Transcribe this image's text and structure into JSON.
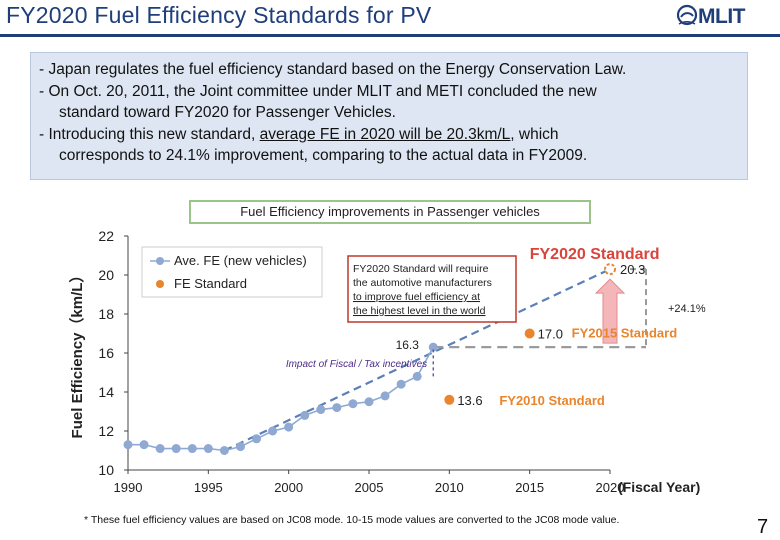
{
  "page": {
    "title": "FY2020 Fuel Efficiency Standards for PV",
    "logo_text": "MLIT",
    "intro_lines": [
      "- Japan regulates the fuel efficiency standard based on the Energy Conservation Law.",
      "- On Oct. 20, 2011, the Joint committee under MLIT and METI concluded the new",
      "standard toward FY2020 for Passenger Vehicles.",
      "- Introducing this new standard, ",
      "average FE in 2020 will be 20.3km/L,",
      " which",
      "corresponds to 24.1% improvement, comparing to the actual data in FY2009."
    ],
    "chart_heading": "Fuel Efficiency improvements in Passenger vehicles",
    "footnote": "* These fuel efficiency values are based on JC08 mode.  10-15 mode values are converted to the JC08 mode value.",
    "page_number": "7"
  },
  "chart_data": {
    "type": "line",
    "ylabel": "Fuel Efficiency（km/L）",
    "xlabel": "(Fiscal Year)",
    "xlim": [
      1990,
      2020
    ],
    "ylim": [
      10,
      22
    ],
    "x_ticks": [
      1990,
      1995,
      2000,
      2005,
      2010,
      2015,
      2020
    ],
    "y_ticks": [
      10,
      12,
      14,
      16,
      18,
      20,
      22
    ],
    "legend": {
      "placement": "top-left",
      "entries": [
        "Ave. FE (new vehicles)",
        "FE Standard"
      ]
    },
    "series": [
      {
        "name": "Ave. FE (new vehicles)",
        "color": "#8fa9d2",
        "x": [
          1990,
          1991,
          1992,
          1993,
          1994,
          1995,
          1996,
          1997,
          1998,
          1999,
          2000,
          2001,
          2002,
          2003,
          2004,
          2005,
          2006,
          2007,
          2008,
          2009
        ],
        "y": [
          11.3,
          11.3,
          11.1,
          11.1,
          11.1,
          11.1,
          11.0,
          11.2,
          11.6,
          12.0,
          12.2,
          12.8,
          13.1,
          13.2,
          13.4,
          13.5,
          13.8,
          14.4,
          14.8,
          16.3
        ]
      },
      {
        "name": "FE Standard",
        "color": "#e8852d",
        "points": [
          {
            "x": 2010,
            "y": 13.6,
            "label": "13.6",
            "name": "FY2010 Standard"
          },
          {
            "x": 2015,
            "y": 17.0,
            "label": "17.0",
            "name": "FY2015 Standard"
          },
          {
            "x": 2020,
            "y": 20.3,
            "label": "20.3",
            "name": "FY2020 Standard"
          }
        ]
      }
    ],
    "trend_line": {
      "x": [
        1996,
        2020
      ],
      "y": [
        11.0,
        20.3
      ],
      "color": "#5b7fb8"
    },
    "reference_line": {
      "x": [
        2009,
        2020
      ],
      "y": [
        16.3,
        16.3
      ],
      "color": "#9a9a9a"
    },
    "annotations": {
      "last_ave_label": "16.3",
      "fiscal_impact": "Impact of Fiscal / Tax incentives",
      "improvement": "+24.1%",
      "callout_lines": [
        "FY2020 Standard will require",
        "the automotive manufacturers",
        "to improve  fuel efficiency at",
        "the highest level in the world"
      ],
      "fy2020_heading": "FY2020 Standard",
      "fy2015_label": "FY2015 Standard",
      "fy2010_label": "FY2010 Standard"
    },
    "colors": {
      "ave": "#8fa9d2",
      "standard": "#e8852d",
      "fy2020": "#d9443b",
      "callout_border": "#c0392b",
      "trend": "#5b7fb8",
      "reference": "#9a9a9a",
      "arrow": "#f4b6b8"
    }
  }
}
